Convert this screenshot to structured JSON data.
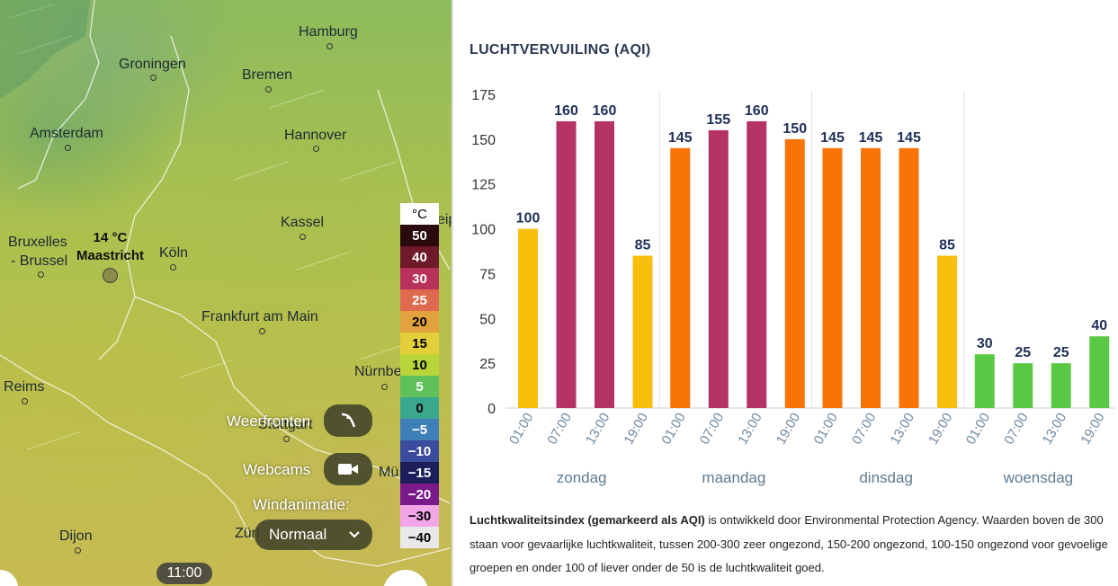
{
  "map": {
    "cities": [
      {
        "name": "Hamburg",
        "id": "hamburg"
      },
      {
        "name": "Groningen",
        "id": "groningen"
      },
      {
        "name": "Bremen",
        "id": "bremen"
      },
      {
        "name": "Amsterdam",
        "id": "amsterdam"
      },
      {
        "name": "Hannover",
        "id": "hannover"
      },
      {
        "name": "Kassel",
        "id": "kassel"
      },
      {
        "name": "Bruxelles",
        "id": "bruxelles"
      },
      {
        "name": "- Brussel",
        "id": "brussel"
      },
      {
        "name": "Köln",
        "id": "koln"
      },
      {
        "name": "Frankfurt am Main",
        "id": "frankfurt"
      },
      {
        "name": "Reims",
        "id": "reims"
      },
      {
        "name": "Nürnbe",
        "id": "nurnberg"
      },
      {
        "name": "Stuttgart",
        "id": "stuttgart"
      },
      {
        "name": "Mü",
        "id": "munchen"
      },
      {
        "name": "Dijon",
        "id": "dijon"
      },
      {
        "name": "Züri",
        "id": "zurich"
      },
      {
        "name": "eip",
        "id": "leipzig"
      }
    ],
    "selected_location": {
      "temp": "14 °C",
      "name": "Maastricht"
    },
    "controls": {
      "weather_fronts_label": "Weerfronten",
      "webcams_label": "Webcams",
      "wind_animation_label": "Windanimatie:",
      "wind_animation_value": "Normaal",
      "time_label": "11:00"
    },
    "temperature_legend": {
      "unit": "°C",
      "steps": [
        {
          "value": "50",
          "color": "#2a0a0c",
          "text": "#fff"
        },
        {
          "value": "40",
          "color": "#6e1a2a",
          "text": "#fff"
        },
        {
          "value": "30",
          "color": "#b8315a",
          "text": "#fff"
        },
        {
          "value": "25",
          "color": "#df6a4f",
          "text": "#fff"
        },
        {
          "value": "20",
          "color": "#e2a23e",
          "text": "#000"
        },
        {
          "value": "15",
          "color": "#e3cf3a",
          "text": "#000"
        },
        {
          "value": "10",
          "color": "#b8d63a",
          "text": "#000"
        },
        {
          "value": "5",
          "color": "#5fc15a",
          "text": "#fff"
        },
        {
          "value": "0",
          "color": "#3aa88f",
          "text": "#000"
        },
        {
          "value": "−5",
          "color": "#3f7fb8",
          "text": "#fff"
        },
        {
          "value": "−10",
          "color": "#3a4c9e",
          "text": "#fff"
        },
        {
          "value": "−15",
          "color": "#1c1f5c",
          "text": "#fff"
        },
        {
          "value": "−20",
          "color": "#7a1a8a",
          "text": "#fff"
        },
        {
          "value": "−30",
          "color": "#f2a6e8",
          "text": "#000"
        },
        {
          "value": "−40",
          "color": "#e9e9e9",
          "text": "#000"
        }
      ]
    }
  },
  "panel": {
    "title": "LUCHTVERVUILING (AQI)",
    "description_bold": "Luchtkwaliteitsindex (gemarkeerd als AQI)",
    "description_rest": " is ontwikkeld door Environmental Protection Agency. Waarden boven de 300 staan voor gevaarlijke luchtkwaliteit, tussen 200-300 zeer ongezond, 150-200 ongezond, 100-150 ongezond voor gevoelige groepen en onder 100 of liever onder de 50 is de luchtkwaliteit goed."
  },
  "chart_data": {
    "type": "bar",
    "title": "LUCHTVERVUILING (AQI)",
    "ylim": [
      0,
      175
    ],
    "yticks": [
      0,
      25,
      50,
      75,
      100,
      125,
      150,
      175
    ],
    "days": [
      "zondag",
      "maandag",
      "dinsdag",
      "woensdag"
    ],
    "times": [
      "01:00",
      "07:00",
      "13:00",
      "19:00"
    ],
    "values": [
      [
        100,
        160,
        160,
        85
      ],
      [
        145,
        155,
        160,
        150
      ],
      [
        145,
        145,
        145,
        85
      ],
      [
        30,
        25,
        25,
        40
      ]
    ],
    "colors": {
      "good": "#5ac845",
      "moderate": "#f8be0c",
      "sensitive": "#f97306",
      "unhealthy": "#b43264"
    },
    "bar_color_keys": [
      [
        "moderate",
        "unhealthy",
        "unhealthy",
        "moderate"
      ],
      [
        "sensitive",
        "unhealthy",
        "unhealthy",
        "sensitive"
      ],
      [
        "sensitive",
        "sensitive",
        "sensitive",
        "moderate"
      ],
      [
        "good",
        "good",
        "good",
        "good"
      ]
    ]
  }
}
